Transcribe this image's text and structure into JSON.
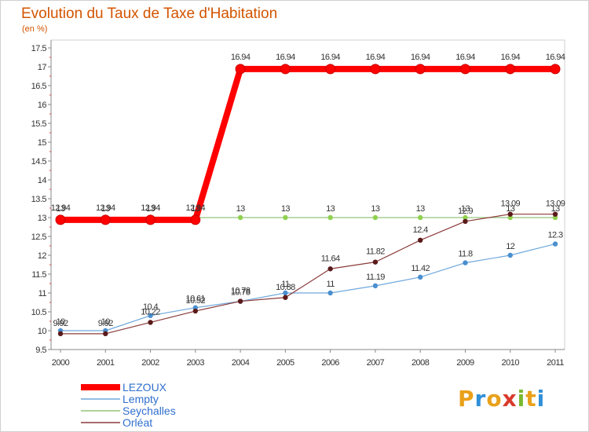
{
  "header": {
    "title": "Evolution du Taux de Taxe d'Habitation",
    "unit": "(en %)"
  },
  "logo": {
    "text": "Proxiti",
    "letters": [
      {
        "ch": "P",
        "color": "#e9a11b"
      },
      {
        "ch": "r",
        "color": "#2f8fd8"
      },
      {
        "ch": "o",
        "color": "#e9a11b"
      },
      {
        "ch": "x",
        "color": "#d93a2b"
      },
      {
        "ch": "i",
        "color": "#7ab92f"
      },
      {
        "ch": "t",
        "color": "#e9a11b"
      },
      {
        "ch": "i",
        "color": "#2f8fd8"
      }
    ]
  },
  "chart_data": {
    "type": "line",
    "title": "Evolution du Taux de Taxe d'Habitation",
    "ylabel": "(en %)",
    "xlabel": "",
    "x": [
      "2000",
      "2001",
      "2002",
      "2003",
      "2004",
      "2005",
      "2006",
      "2007",
      "2008",
      "2009",
      "2010",
      "2011"
    ],
    "ylim": [
      9.5,
      17.5
    ],
    "yticks": [
      "9.5",
      "10",
      "10.5",
      "11",
      "11.5",
      "12",
      "12.5",
      "13",
      "13.5",
      "14",
      "14.5",
      "15",
      "15.5",
      "16",
      "16.5",
      "17",
      "17.5"
    ],
    "grid": false,
    "legend_position": "bottom-left",
    "series": [
      {
        "name": "LEZOUX",
        "color": "#ff0000",
        "width": 8,
        "values": [
          12.94,
          12.94,
          12.94,
          12.94,
          16.94,
          16.94,
          16.94,
          16.94,
          16.94,
          16.94,
          16.94,
          16.94
        ],
        "labels": [
          "12.94",
          "12.94",
          "12.94",
          "12.94",
          "16.94",
          "16.94",
          "16.94",
          "16.94",
          "16.94",
          "16.94",
          "16.94",
          "16.94"
        ]
      },
      {
        "name": "Lempty",
        "color": "#6fa8dc",
        "width": 1.2,
        "values": [
          10,
          10,
          10.4,
          10.61,
          10.78,
          11,
          11,
          11.19,
          11.42,
          11.8,
          12,
          12.3
        ],
        "labels": [
          "10",
          "10",
          "10.4",
          "10.61",
          "10.78",
          "11",
          "11",
          "11.19",
          "11.42",
          "11.8",
          "12",
          "12.3"
        ]
      },
      {
        "name": "Seychalles",
        "color": "#93c47d",
        "width": 1.2,
        "values": [
          13,
          13,
          13,
          13,
          13,
          13,
          13,
          13,
          13,
          13,
          13,
          13
        ],
        "labels": [
          "13",
          "13",
          "13",
          "13",
          "13",
          "13",
          "13",
          "13",
          "13",
          "13",
          "13",
          "13"
        ]
      },
      {
        "name": "Orléat",
        "color": "#8b3a3a",
        "width": 1.2,
        "values": [
          9.92,
          9.92,
          10.22,
          10.52,
          10.78,
          10.88,
          11.64,
          11.82,
          12.4,
          12.9,
          13.09,
          13.09
        ],
        "labels": [
          "9.92",
          "9.92",
          "10.22",
          "10.52",
          "10.78",
          "10.88",
          "11.64",
          "11.82",
          "12.4",
          "12.9",
          "13.09",
          "13.09"
        ]
      }
    ]
  }
}
